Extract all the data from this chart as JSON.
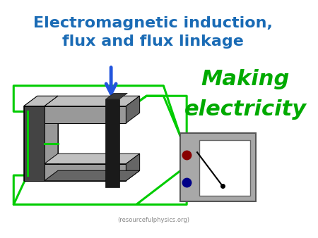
{
  "title_line1": "Electromagnetic induction,",
  "title_line2": "flux and flux linkage",
  "title_color": "#1a6bb5",
  "making_line1": "Making",
  "making_line2": "electricity",
  "making_color": "#00aa00",
  "footer_text": "(resourcefulphysics.org)",
  "bg_color": "#ffffff",
  "gray_light": "#c0c0c0",
  "gray_mid": "#999999",
  "gray_dark": "#666666",
  "gray_darker": "#444444",
  "gray_darkest": "#222222",
  "coil_color": "#00cc00",
  "arrow_color": "#2255dd",
  "meter_frame": "#aaaaaa",
  "meter_screen": "#ffffff",
  "meter_red": "#880000",
  "meter_blue": "#000088"
}
